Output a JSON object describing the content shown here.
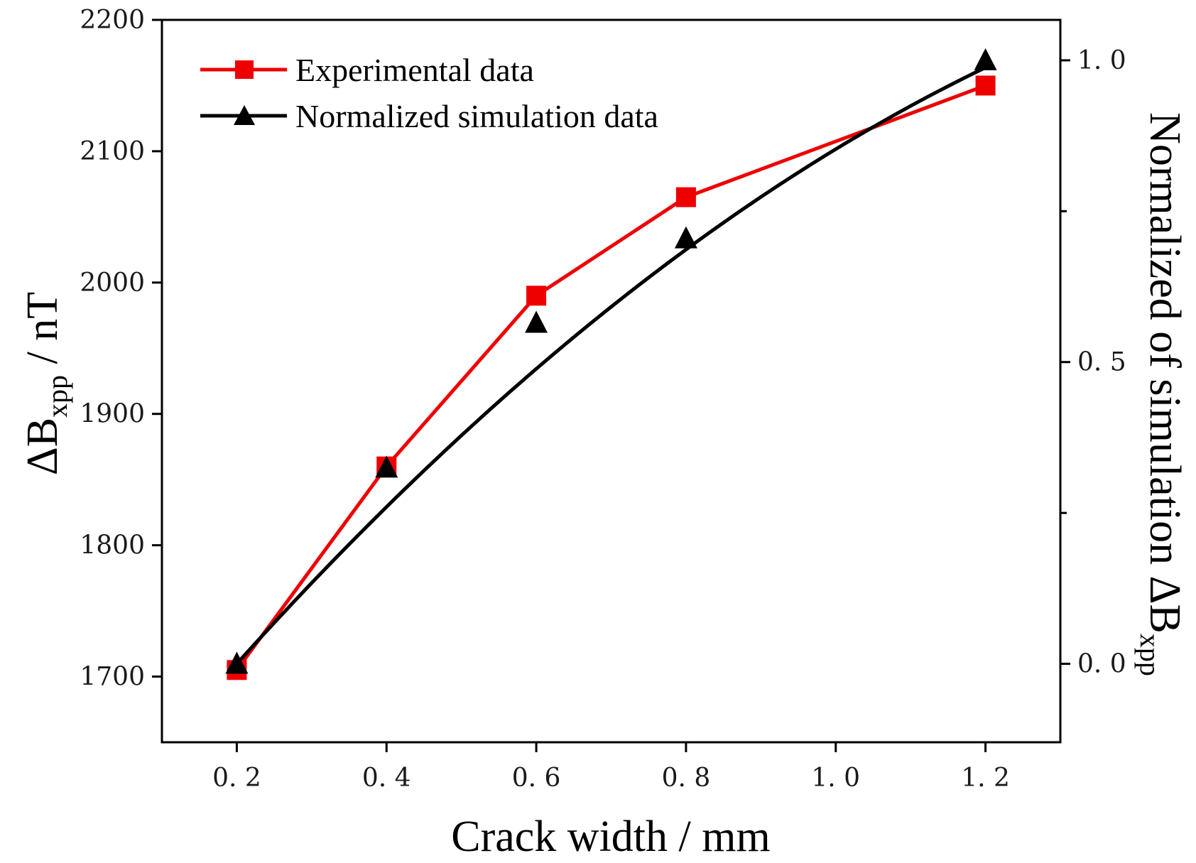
{
  "chart_data": {
    "type": "line",
    "title": "",
    "xlabel": "Crack width / mm",
    "ylabel_left": {
      "prefix": "ΔB",
      "subscript": "xpp",
      "suffix": " / nT"
    },
    "ylabel_right": {
      "prefix": "Normalized of simulation ΔB",
      "subscript": "xpp"
    },
    "xlim": [
      0.1,
      1.3
    ],
    "ylim_left": [
      1650,
      2200
    ],
    "ylim_right": [
      -0.13,
      1.067
    ],
    "x_ticks": [
      0.2,
      0.4,
      0.6,
      0.8,
      1.0,
      1.2
    ],
    "x_tick_labels": [
      "0. 2",
      "0. 4",
      "0. 6",
      "0. 8",
      "1. 0",
      "1. 2"
    ],
    "y_left_ticks": [
      1700,
      1800,
      1900,
      2000,
      2100,
      2200
    ],
    "y_left_tick_labels": [
      "1700",
      "1800",
      "1900",
      "2000",
      "2100",
      "2200"
    ],
    "y_right_ticks": [
      0.0,
      0.5,
      1.0
    ],
    "y_right_tick_labels": [
      "0. 0",
      "0. 5",
      "1. 0"
    ],
    "y_right_minor_ticks": [
      0.25,
      0.75
    ],
    "series": [
      {
        "name": "Experimental data",
        "axis": "left",
        "color": "#ee0000",
        "marker": "square",
        "x": [
          0.2,
          0.4,
          0.6,
          0.8,
          1.2
        ],
        "values": [
          1705,
          1860,
          1990,
          2065,
          2150
        ]
      },
      {
        "name": "Normalized simulation data",
        "axis": "right",
        "color": "#000000",
        "marker": "triangle",
        "x": [
          0.2,
          0.4,
          0.6,
          0.8,
          1.2
        ],
        "values": [
          0.0,
          0.325,
          0.565,
          0.705,
          1.0
        ],
        "fit_curve": {
          "x0": 0.2,
          "x1": 1.2,
          "y0": 0.0,
          "y1": 0.988,
          "a": -0.39,
          "b": 1.378
        }
      }
    ],
    "legend_position": "top-left"
  }
}
